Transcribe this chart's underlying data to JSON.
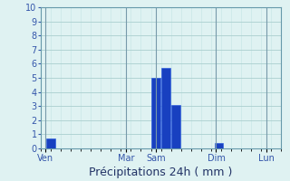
{
  "background_color": "#dff2f2",
  "grid_color_major": "#aacfcf",
  "grid_color_minor": "#c4e4e4",
  "bar_color": "#1840c0",
  "bar_edge_color": "#2255e0",
  "ylim": [
    0,
    10
  ],
  "yticks": [
    0,
    1,
    2,
    3,
    4,
    5,
    6,
    7,
    8,
    9,
    10
  ],
  "xlim": [
    0,
    24
  ],
  "day_labels": [
    "Ven",
    "Mar",
    "Sam",
    "Dim",
    "Lun"
  ],
  "day_positions": [
    0.5,
    8.5,
    11.5,
    17.5,
    22.5
  ],
  "bars": [
    {
      "x": 1.0,
      "height": 0.7
    },
    {
      "x": 11.5,
      "height": 5.0
    },
    {
      "x": 12.5,
      "height": 5.7
    },
    {
      "x": 13.5,
      "height": 3.1
    },
    {
      "x": 17.8,
      "height": 0.4
    }
  ],
  "bar_width": 0.85,
  "xlabel": "Précipitations 24h ( mm )",
  "xlabel_fontsize": 9,
  "tick_fontsize": 7,
  "spine_color": "#6699aa"
}
